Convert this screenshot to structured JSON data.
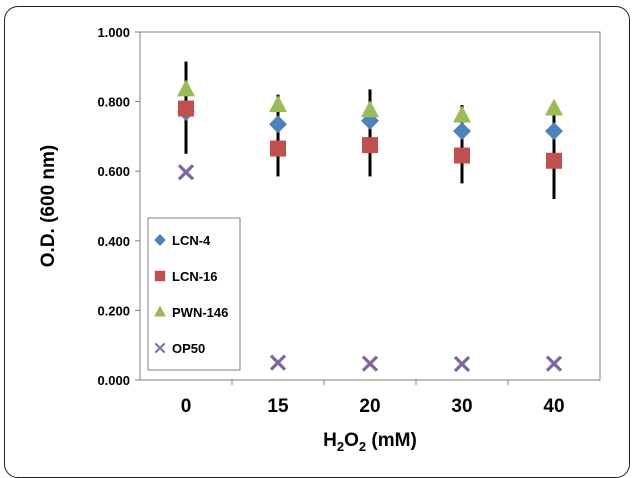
{
  "chart_data": {
    "type": "scatter",
    "xlabel": "H2O2 (mM)",
    "xlabel_parts": {
      "pre": "H",
      "sub1": "2",
      "mid": "O",
      "sub2": "2",
      "post": " (mM)"
    },
    "ylabel": "O.D. (600 nm)",
    "categories": [
      "0",
      "15",
      "20",
      "30",
      "40"
    ],
    "ylim": [
      0,
      1.0
    ],
    "yticks": [
      "0.000",
      "0.200",
      "0.400",
      "0.600",
      "0.800",
      "1.000"
    ],
    "legend_position": "lower-left",
    "series": [
      {
        "name": "LCN-4",
        "marker": "diamond",
        "color": "#4f81bd",
        "values": [
          0.77,
          0.735,
          0.745,
          0.715,
          0.715
        ],
        "err": [
          0.08,
          0.04,
          0.05,
          0.04,
          0.05
        ]
      },
      {
        "name": "LCN-16",
        "marker": "square",
        "color": "#c0504d",
        "values": [
          0.78,
          0.665,
          0.675,
          0.645,
          0.63
        ],
        "err": [
          0.13,
          0.08,
          0.09,
          0.08,
          0.11
        ]
      },
      {
        "name": "PWN-146",
        "marker": "triangle",
        "color": "#9bbb59",
        "values": [
          0.835,
          0.79,
          0.775,
          0.76,
          0.78
        ],
        "err": [
          0.08,
          0.03,
          0.06,
          0.03,
          0.02
        ]
      },
      {
        "name": "OP50",
        "marker": "x",
        "color": "#8064a2",
        "values": [
          0.597,
          0.05,
          0.047,
          0.046,
          0.047
        ],
        "err": [
          0,
          0,
          0,
          0,
          0
        ]
      }
    ]
  }
}
